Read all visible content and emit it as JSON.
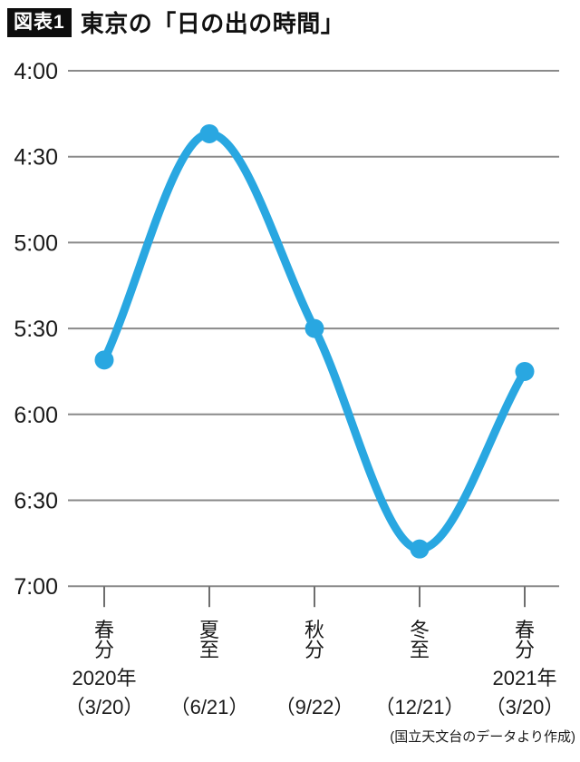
{
  "header": {
    "badge": "図表1",
    "title": "東京の「日の出の時間」"
  },
  "footer": {
    "source": "(国立天文台のデータより作成)"
  },
  "chart_data": {
    "type": "line",
    "title": "東京の「日の出の時間」",
    "series_name": "日の出の時間",
    "categories": [
      {
        "season": "春分",
        "year": "2020年",
        "date": "（3/20）"
      },
      {
        "season": "夏至",
        "year": "",
        "date": "（6/21）"
      },
      {
        "season": "秋分",
        "year": "",
        "date": "（9/22）"
      },
      {
        "season": "冬至",
        "year": "",
        "date": "（12/21）"
      },
      {
        "season": "春分",
        "year": "2021年",
        "date": "（3/20）"
      }
    ],
    "values": [
      "5:41",
      "4:22",
      "5:30",
      "6:47",
      "5:45"
    ],
    "y_ticks": [
      "4:00",
      "4:30",
      "5:00",
      "5:30",
      "6:00",
      "6:30",
      "7:00"
    ],
    "ylim": [
      "4:00",
      "7:00"
    ],
    "y_axis_inverted": true,
    "grid": true,
    "legend": "none",
    "line_color": "#29A7E1",
    "grid_color": "#8A8A8A",
    "tick_color": "#6E6E6E",
    "text_color": "#1A1A1A"
  }
}
